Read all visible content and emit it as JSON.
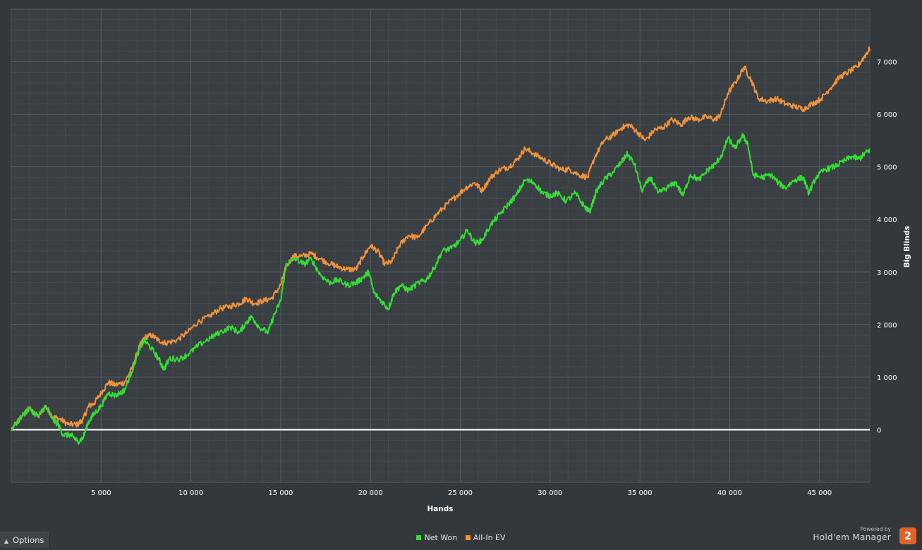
{
  "chart_data": {
    "type": "line",
    "xlabel": "Hands",
    "ylabel": "Big Blinds",
    "xlim": [
      0,
      47800
    ],
    "ylim": [
      -1000,
      8000
    ],
    "x_ticks": [
      5000,
      10000,
      15000,
      20000,
      25000,
      30000,
      35000,
      40000,
      45000
    ],
    "x_tick_labels": [
      "5 000",
      "10 000",
      "15 000",
      "20 000",
      "25 000",
      "30 000",
      "35 000",
      "40 000",
      "45 000"
    ],
    "y_ticks": [
      0,
      1000,
      2000,
      3000,
      4000,
      5000,
      6000,
      7000
    ],
    "y_tick_labels": [
      "0",
      "1 000",
      "2 000",
      "3 000",
      "4 000",
      "5 000",
      "6 000",
      "7 000"
    ],
    "legend": "bottom-center",
    "grid": true,
    "zero_line_color": "#ffffff",
    "series": [
      {
        "name": "Net Won",
        "color": "#33dd33",
        "points": [
          [
            0,
            0
          ],
          [
            700,
            300
          ],
          [
            1000,
            400
          ],
          [
            1500,
            250
          ],
          [
            1900,
            450
          ],
          [
            2300,
            200
          ],
          [
            2600,
            100
          ],
          [
            2900,
            -100
          ],
          [
            3300,
            -100
          ],
          [
            3500,
            -150
          ],
          [
            3700,
            -230
          ],
          [
            4000,
            -150
          ],
          [
            4300,
            150
          ],
          [
            4600,
            300
          ],
          [
            5000,
            450
          ],
          [
            5400,
            700
          ],
          [
            5800,
            650
          ],
          [
            6300,
            750
          ],
          [
            6700,
            1100
          ],
          [
            7100,
            1500
          ],
          [
            7400,
            1700
          ],
          [
            7800,
            1550
          ],
          [
            8200,
            1350
          ],
          [
            8500,
            1150
          ],
          [
            8800,
            1350
          ],
          [
            9400,
            1350
          ],
          [
            9900,
            1450
          ],
          [
            10400,
            1600
          ],
          [
            11100,
            1750
          ],
          [
            11600,
            1850
          ],
          [
            12200,
            1950
          ],
          [
            12700,
            1850
          ],
          [
            13100,
            2050
          ],
          [
            13400,
            2150
          ],
          [
            13800,
            1950
          ],
          [
            14300,
            1850
          ],
          [
            14600,
            2150
          ],
          [
            15000,
            2450
          ],
          [
            15300,
            3150
          ],
          [
            15800,
            3250
          ],
          [
            16300,
            3150
          ],
          [
            16700,
            3250
          ],
          [
            17200,
            2950
          ],
          [
            17700,
            2800
          ],
          [
            18200,
            2850
          ],
          [
            18700,
            2750
          ],
          [
            19200,
            2800
          ],
          [
            19600,
            2900
          ],
          [
            19900,
            3000
          ],
          [
            20200,
            2600
          ],
          [
            20600,
            2450
          ],
          [
            21000,
            2300
          ],
          [
            21300,
            2600
          ],
          [
            21700,
            2750
          ],
          [
            22100,
            2650
          ],
          [
            22700,
            2800
          ],
          [
            23100,
            2850
          ],
          [
            23500,
            3050
          ],
          [
            24000,
            3400
          ],
          [
            24500,
            3450
          ],
          [
            25000,
            3600
          ],
          [
            25400,
            3800
          ],
          [
            25800,
            3550
          ],
          [
            26200,
            3600
          ],
          [
            26700,
            3900
          ],
          [
            27200,
            4100
          ],
          [
            27700,
            4300
          ],
          [
            28100,
            4450
          ],
          [
            28600,
            4750
          ],
          [
            29100,
            4700
          ],
          [
            29600,
            4500
          ],
          [
            30000,
            4450
          ],
          [
            30400,
            4500
          ],
          [
            30900,
            4350
          ],
          [
            31400,
            4500
          ],
          [
            31900,
            4250
          ],
          [
            32200,
            4150
          ],
          [
            32600,
            4550
          ],
          [
            33000,
            4750
          ],
          [
            33500,
            4900
          ],
          [
            34000,
            5100
          ],
          [
            34300,
            5250
          ],
          [
            34700,
            5050
          ],
          [
            35100,
            4550
          ],
          [
            35600,
            4800
          ],
          [
            36000,
            4500
          ],
          [
            36500,
            4600
          ],
          [
            37000,
            4700
          ],
          [
            37400,
            4450
          ],
          [
            37800,
            4850
          ],
          [
            38300,
            4750
          ],
          [
            38800,
            4950
          ],
          [
            39200,
            5050
          ],
          [
            39600,
            5250
          ],
          [
            39900,
            5550
          ],
          [
            40300,
            5350
          ],
          [
            40700,
            5600
          ],
          [
            41000,
            5450
          ],
          [
            41300,
            4850
          ],
          [
            41800,
            4800
          ],
          [
            42300,
            4850
          ],
          [
            42700,
            4700
          ],
          [
            43100,
            4600
          ],
          [
            43600,
            4750
          ],
          [
            44100,
            4800
          ],
          [
            44400,
            4500
          ],
          [
            44800,
            4800
          ],
          [
            45300,
            4950
          ],
          [
            45800,
            5000
          ],
          [
            46300,
            5100
          ],
          [
            46800,
            5200
          ],
          [
            47200,
            5150
          ],
          [
            47500,
            5250
          ],
          [
            47800,
            5320
          ]
        ]
      },
      {
        "name": "All-In EV",
        "color": "#f0923a",
        "points": [
          [
            0,
            0
          ],
          [
            700,
            300
          ],
          [
            1000,
            400
          ],
          [
            1500,
            250
          ],
          [
            1900,
            450
          ],
          [
            2300,
            250
          ],
          [
            2700,
            200
          ],
          [
            3200,
            100
          ],
          [
            3700,
            100
          ],
          [
            4000,
            200
          ],
          [
            4300,
            450
          ],
          [
            4600,
            500
          ],
          [
            5000,
            700
          ],
          [
            5400,
            900
          ],
          [
            5800,
            850
          ],
          [
            6300,
            900
          ],
          [
            6700,
            1150
          ],
          [
            7100,
            1550
          ],
          [
            7400,
            1750
          ],
          [
            7800,
            1800
          ],
          [
            8200,
            1700
          ],
          [
            8600,
            1650
          ],
          [
            9200,
            1700
          ],
          [
            9800,
            1850
          ],
          [
            10400,
            2050
          ],
          [
            11000,
            2150
          ],
          [
            11600,
            2300
          ],
          [
            12200,
            2350
          ],
          [
            12700,
            2400
          ],
          [
            13100,
            2500
          ],
          [
            13500,
            2400
          ],
          [
            14000,
            2450
          ],
          [
            14500,
            2500
          ],
          [
            15000,
            2750
          ],
          [
            15300,
            3100
          ],
          [
            15700,
            3300
          ],
          [
            16200,
            3300
          ],
          [
            16700,
            3350
          ],
          [
            17200,
            3250
          ],
          [
            17800,
            3150
          ],
          [
            18200,
            3100
          ],
          [
            18700,
            3050
          ],
          [
            19200,
            3050
          ],
          [
            19600,
            3300
          ],
          [
            20000,
            3500
          ],
          [
            20400,
            3400
          ],
          [
            20800,
            3150
          ],
          [
            21200,
            3200
          ],
          [
            21600,
            3500
          ],
          [
            22100,
            3700
          ],
          [
            22600,
            3650
          ],
          [
            23200,
            3900
          ],
          [
            23700,
            4100
          ],
          [
            24300,
            4300
          ],
          [
            24800,
            4450
          ],
          [
            25300,
            4600
          ],
          [
            25800,
            4700
          ],
          [
            26200,
            4550
          ],
          [
            26700,
            4800
          ],
          [
            27200,
            4950
          ],
          [
            27700,
            5000
          ],
          [
            28200,
            5150
          ],
          [
            28600,
            5350
          ],
          [
            29100,
            5250
          ],
          [
            29600,
            5150
          ],
          [
            30100,
            5050
          ],
          [
            30600,
            4950
          ],
          [
            31100,
            4950
          ],
          [
            31600,
            4850
          ],
          [
            32100,
            4800
          ],
          [
            32500,
            5200
          ],
          [
            33000,
            5500
          ],
          [
            33500,
            5600
          ],
          [
            34000,
            5750
          ],
          [
            34400,
            5800
          ],
          [
            34900,
            5650
          ],
          [
            35300,
            5500
          ],
          [
            35800,
            5700
          ],
          [
            36300,
            5750
          ],
          [
            36800,
            5900
          ],
          [
            37300,
            5800
          ],
          [
            37700,
            5950
          ],
          [
            38200,
            5900
          ],
          [
            38700,
            5950
          ],
          [
            39200,
            5900
          ],
          [
            39500,
            6000
          ],
          [
            39900,
            6400
          ],
          [
            40400,
            6650
          ],
          [
            40800,
            6900
          ],
          [
            41200,
            6650
          ],
          [
            41600,
            6300
          ],
          [
            42100,
            6250
          ],
          [
            42600,
            6300
          ],
          [
            43100,
            6200
          ],
          [
            43600,
            6150
          ],
          [
            44100,
            6100
          ],
          [
            44600,
            6200
          ],
          [
            45100,
            6300
          ],
          [
            45600,
            6500
          ],
          [
            46100,
            6700
          ],
          [
            46600,
            6800
          ],
          [
            47100,
            6900
          ],
          [
            47500,
            7100
          ],
          [
            47800,
            7250
          ]
        ]
      }
    ]
  },
  "footer": {
    "options_label": "Options",
    "brand_small": "Powered by",
    "brand_name": "Hold'em Manager",
    "brand_logo_text": "2",
    "brand_logo_color": "#e2622b"
  }
}
